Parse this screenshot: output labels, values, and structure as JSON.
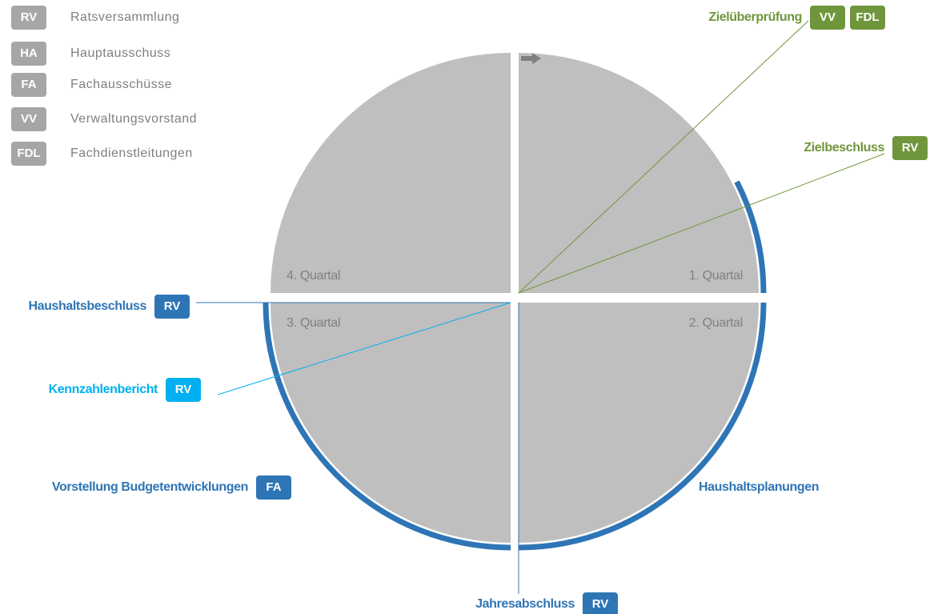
{
  "legend": [
    {
      "abbr": "RV",
      "label": "Ratsversammlung"
    },
    {
      "abbr": "HA",
      "label": "Hauptausschuss"
    },
    {
      "abbr": "FA",
      "label": "Fachausschüsse"
    },
    {
      "abbr": "VV",
      "label": "Verwaltungsvorstand"
    },
    {
      "abbr": "FDL",
      "label": "Fachdienstleitungen"
    }
  ],
  "quarters": [
    "1. Quartal",
    "2. Quartal",
    "3. Quartal",
    "4. Quartal"
  ],
  "events": [
    {
      "label": "Zielüberprüfung",
      "badges": [
        "VV",
        "FDL"
      ]
    },
    {
      "label": "Zielbeschluss",
      "badges": [
        "RV"
      ]
    },
    {
      "label": "Haushaltsbeschluss",
      "badges": [
        "RV"
      ]
    },
    {
      "label": "Kennzahlenbericht",
      "badges": [
        "RV"
      ]
    },
    {
      "label": "Vorstellung Budgetentwicklungen",
      "badges": [
        "FA"
      ]
    },
    {
      "label": "Haushaltsplanungen",
      "badges": []
    },
    {
      "label": "Jahresabschluss",
      "badges": [
        "RV"
      ]
    }
  ]
}
